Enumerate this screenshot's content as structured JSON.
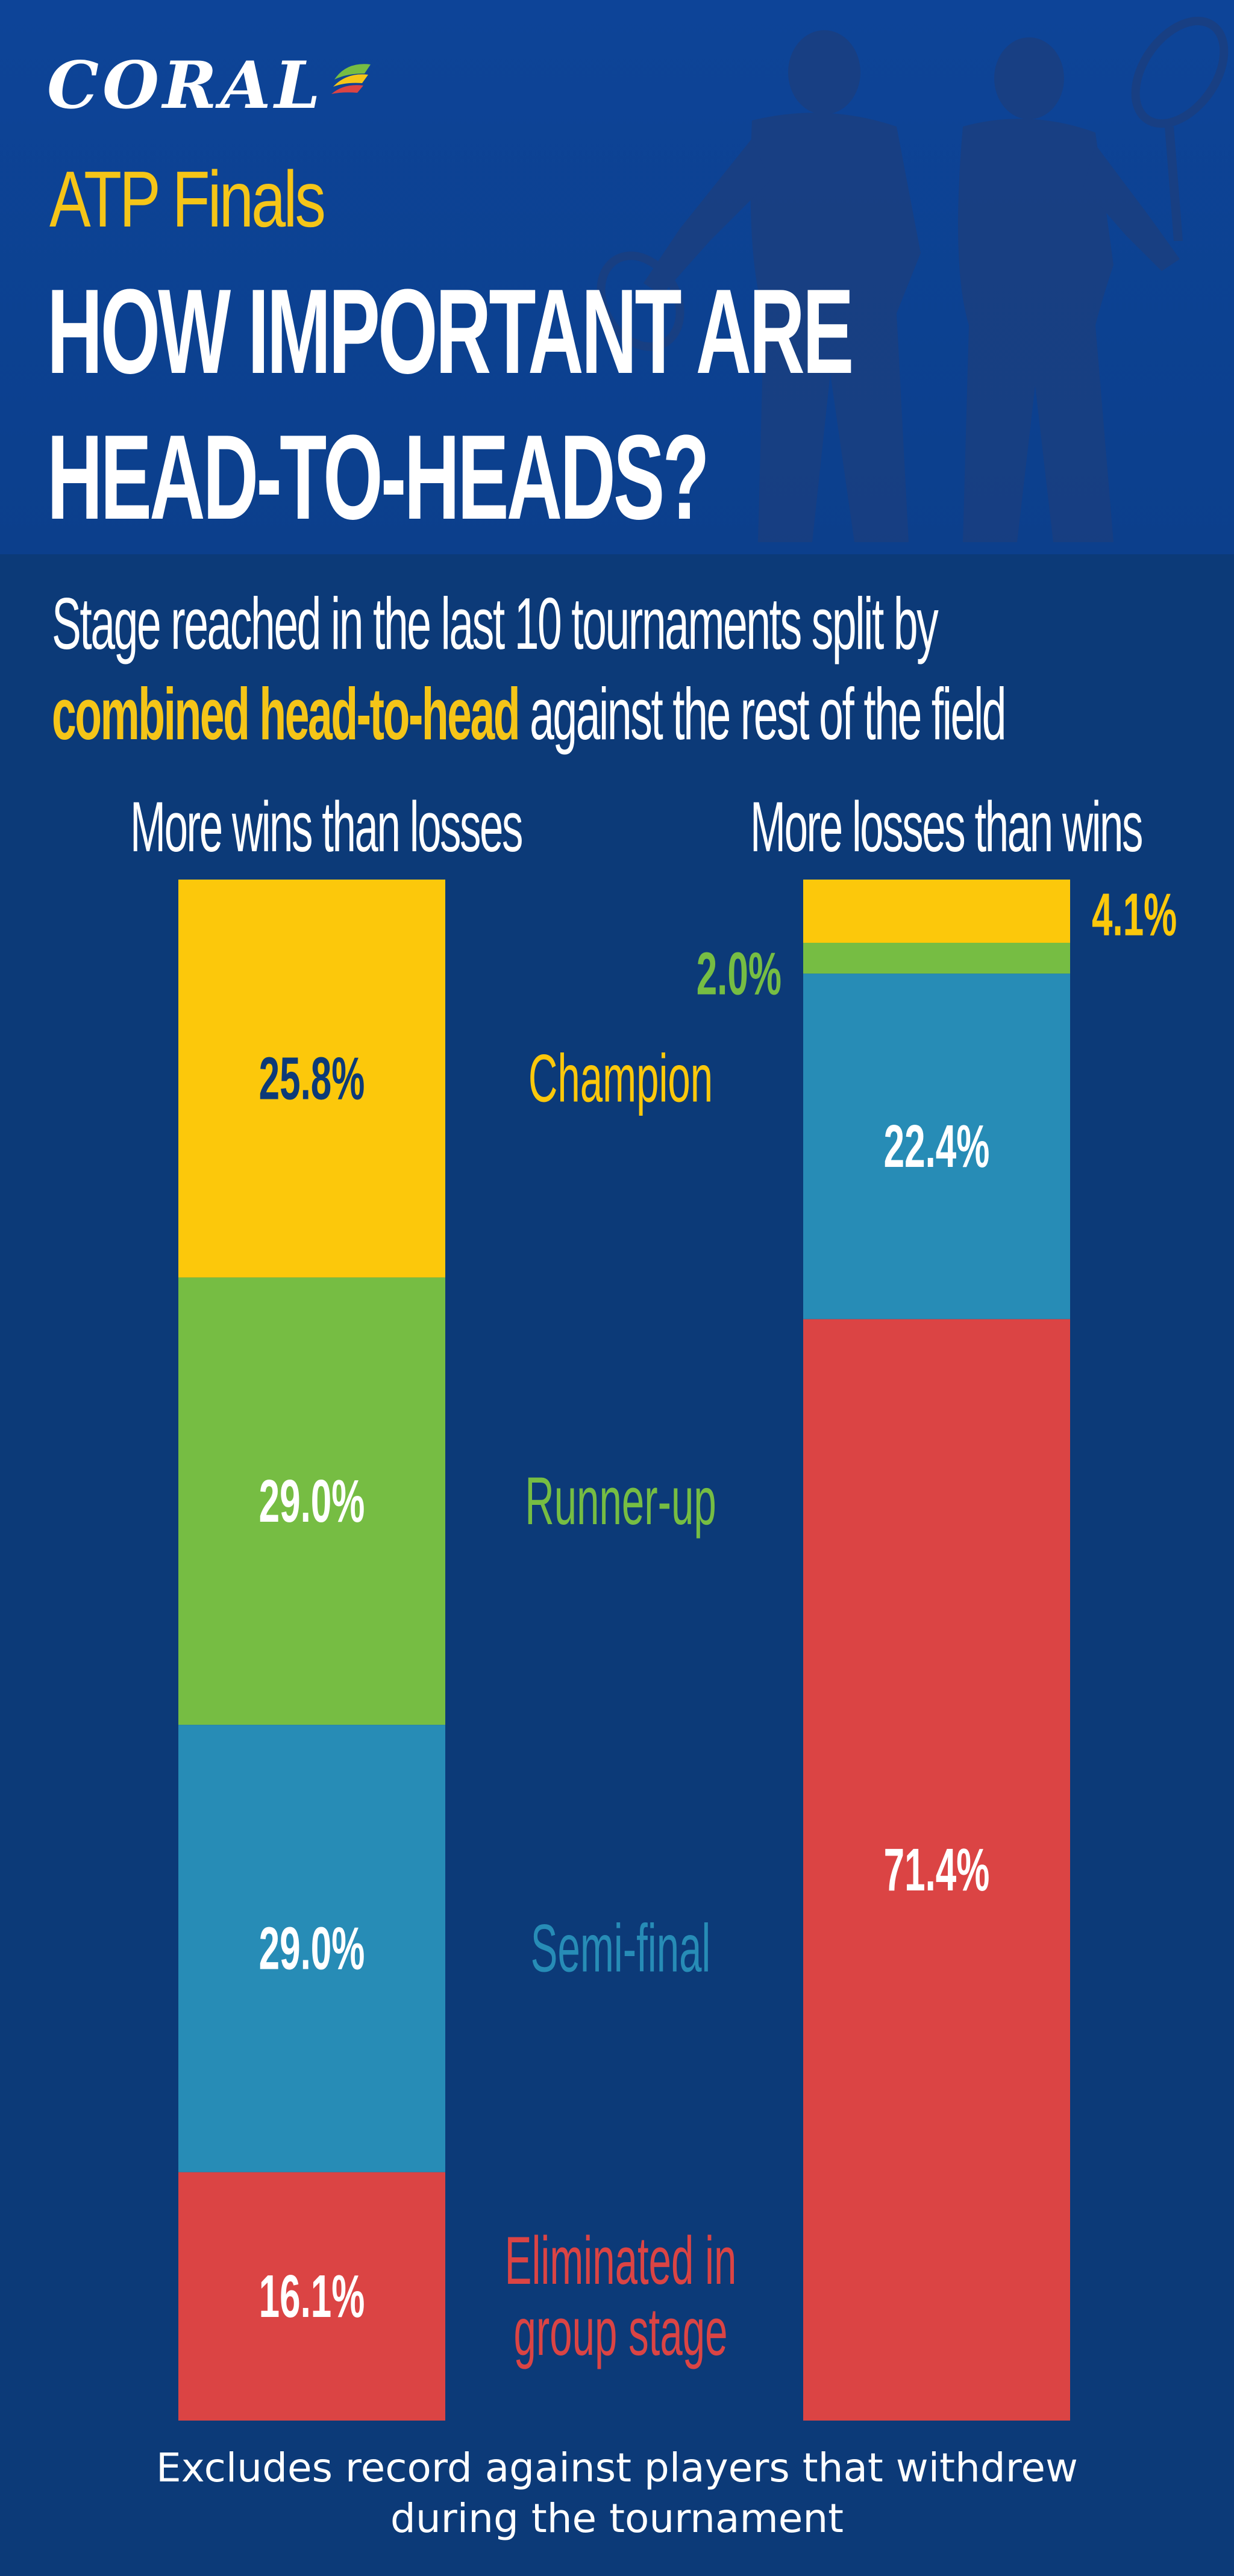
{
  "brand": {
    "logo_text": "CORAL"
  },
  "header": {
    "event": "ATP Finals",
    "title_line1": "HOW IMPORTANT ARE",
    "title_line2": "HEAD-TO-HEADS?"
  },
  "intro": {
    "line1": "Stage reached in the last 10 tournaments split by",
    "highlight": "combined head-to-head",
    "line2_rest": " against the rest of the field"
  },
  "footnote": {
    "line1": "Excludes record against players that withdrew",
    "line2": "during the tournament"
  },
  "colors": {
    "background": "#0c3a78",
    "header": "#0d4498",
    "champion": "#fcc80b",
    "runner_up": "#76bd43",
    "semi_final": "#278cb6",
    "group_stage": "#db4444",
    "label_dark": "#0c3a78",
    "label_light": "#ffffff"
  },
  "chart_data": {
    "type": "bar",
    "stacked": true,
    "normalized": "percent",
    "categories": [
      "More wins than losses",
      "More losses than wins"
    ],
    "series": [
      {
        "name": "Champion",
        "values": [
          25.8,
          4.1
        ],
        "labels": [
          "25.8%",
          "4.1%"
        ],
        "color": "#fcc80b"
      },
      {
        "name": "Runner-up",
        "values": [
          29.0,
          2.0
        ],
        "labels": [
          "29.0%",
          "2.0%"
        ],
        "color": "#76bd43"
      },
      {
        "name": "Semi-final",
        "values": [
          29.0,
          22.4
        ],
        "labels": [
          "29.0%",
          "22.4%"
        ],
        "color": "#278cb6"
      },
      {
        "name": "Eliminated in group stage",
        "values": [
          16.1,
          71.4
        ],
        "labels": [
          "16.1%",
          "71.4%"
        ],
        "color": "#db4444"
      }
    ],
    "legend_position": "between-bars",
    "legend_lines": [
      [
        "Champion"
      ],
      [
        "Runner-up"
      ],
      [
        "Semi-final"
      ],
      [
        "Eliminated in",
        "group stage"
      ]
    ],
    "ylim": [
      0,
      100
    ],
    "grid": false
  }
}
